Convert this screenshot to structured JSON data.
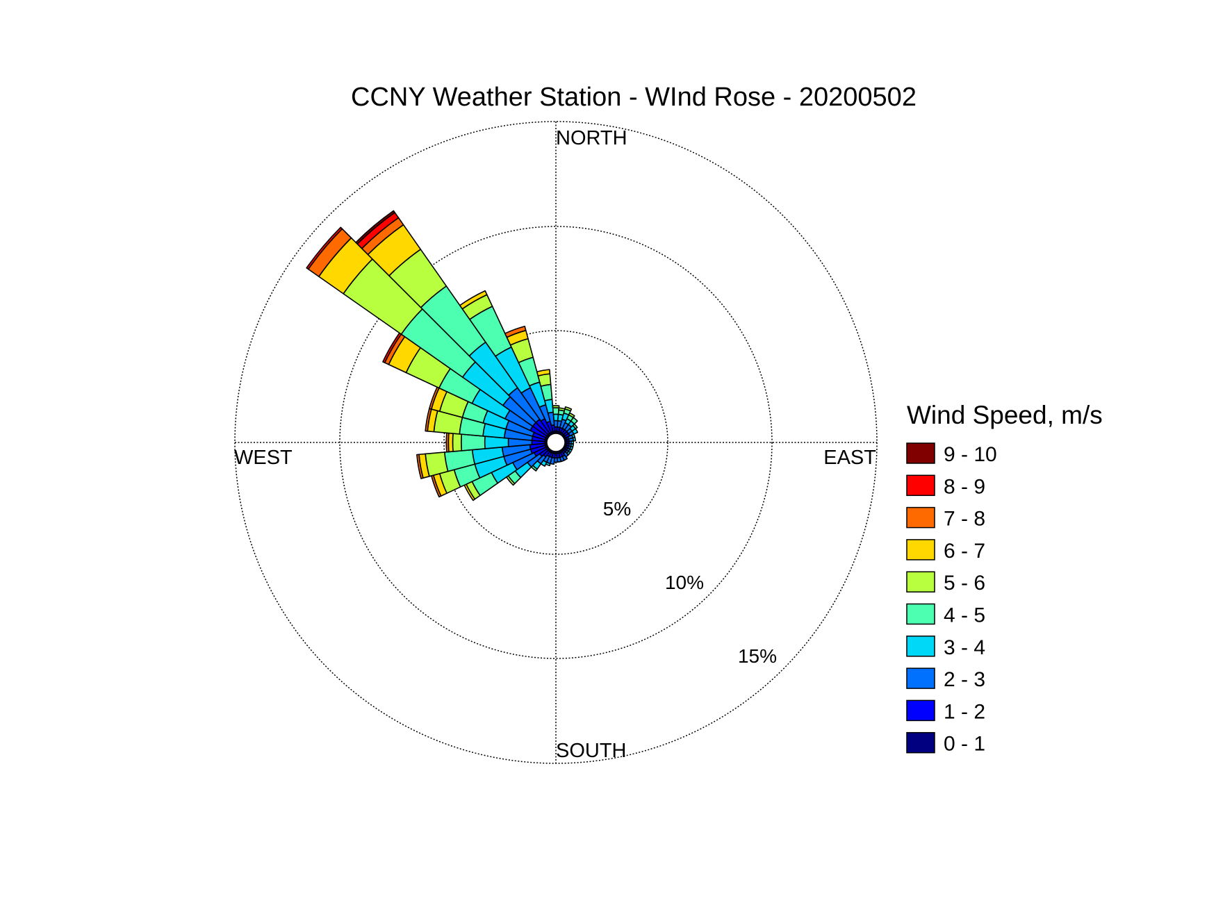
{
  "chart_data": {
    "type": "wind-rose",
    "title": "CCNY Weather Station - WInd Rose - 20200502",
    "direction_labels": {
      "north": "NORTH",
      "south": "SOUTH",
      "east": "EAST",
      "west": "WEST"
    },
    "radial_ticks": [
      {
        "value": 5,
        "label": "5%"
      },
      {
        "value": 10,
        "label": "10%"
      },
      {
        "value": 15,
        "label": "15%"
      }
    ],
    "rmax": 15,
    "direction_bins": [
      180,
      190,
      200,
      210,
      220,
      230,
      240,
      250,
      260,
      270,
      280,
      290,
      300,
      310,
      320,
      330,
      340,
      350,
      0,
      10,
      20,
      30,
      40,
      50,
      60,
      70,
      80,
      90,
      100,
      110,
      120,
      130,
      140,
      150,
      160,
      170
    ],
    "bin_width_deg": 10,
    "legend": {
      "title": "Wind Speed, m/s",
      "bins": [
        {
          "label": "9 - 10",
          "color": "#800000"
        },
        {
          "label": "8 - 9",
          "color": "#ff0000"
        },
        {
          "label": "7 - 8",
          "color": "#ff6a00"
        },
        {
          "label": "6 - 7",
          "color": "#ffd800"
        },
        {
          "label": "5 - 6",
          "color": "#b8ff40"
        },
        {
          "label": "4 - 5",
          "color": "#4dffb0"
        },
        {
          "label": "3 - 4",
          "color": "#00d8f8"
        },
        {
          "label": "2 - 3",
          "color": "#0070ff"
        },
        {
          "label": "1 - 2",
          "color": "#0000ff"
        },
        {
          "label": "0 - 1",
          "color": "#000080"
        }
      ]
    },
    "speed_colors": [
      "#000080",
      "#0000ff",
      "#0070ff",
      "#00d8f8",
      "#4dffb0",
      "#b8ff40",
      "#ffd800",
      "#ff6a00",
      "#ff0000",
      "#800000"
    ],
    "series": [
      {
        "direction": 180,
        "cumulative": [
          0.1,
          0.3,
          0.5
        ]
      },
      {
        "direction": 190,
        "cumulative": [
          0.1,
          0.3,
          0.6
        ]
      },
      {
        "direction": 200,
        "cumulative": [
          0.1,
          0.3,
          0.6,
          0.7
        ]
      },
      {
        "direction": 210,
        "cumulative": [
          0.1,
          0.3,
          0.6,
          0.8
        ]
      },
      {
        "direction": 220,
        "cumulative": [
          0.1,
          0.4,
          0.8,
          1.1,
          1.2
        ]
      },
      {
        "direction": 230,
        "cumulative": [
          0.1,
          0.5,
          1.2,
          1.9,
          2.3,
          2.4
        ]
      },
      {
        "direction": 240,
        "cumulative": [
          0.1,
          0.7,
          1.8,
          2.9,
          3.9,
          4.2,
          4.3
        ]
      },
      {
        "direction": 250,
        "cumulative": [
          0.1,
          0.8,
          2.1,
          3.5,
          4.5,
          5.2,
          5.5,
          5.6
        ]
      },
      {
        "direction": 260,
        "cumulative": [
          0.1,
          0.8,
          2.1,
          3.5,
          4.8,
          5.7,
          6.0,
          6.1
        ]
      },
      {
        "direction": 270,
        "cumulative": [
          0.1,
          0.7,
          1.8,
          2.9,
          4.0,
          4.4,
          4.6,
          4.7
        ]
      },
      {
        "direction": 280,
        "cumulative": [
          0.1,
          0.7,
          2.0,
          3.0,
          4.1,
          5.3,
          5.6,
          5.7
        ]
      },
      {
        "direction": 290,
        "cumulative": [
          0.1,
          0.7,
          2.0,
          3.1,
          4.1,
          5.2,
          5.6,
          5.7
        ]
      },
      {
        "direction": 300,
        "cumulative": [
          0.1,
          0.9,
          2.2,
          3.9,
          5.6,
          7.3,
          8.2,
          8.4,
          8.5
        ]
      },
      {
        "direction": 310,
        "cumulative": [
          0.1,
          0.9,
          2.6,
          4.9,
          8.4,
          11.7,
          13.1,
          13.7,
          13.8
        ]
      },
      {
        "direction": 320,
        "cumulative": [
          0.1,
          0.9,
          2.7,
          5.3,
          8.5,
          10.6,
          12.0,
          12.4,
          12.7,
          12.8
        ]
      },
      {
        "direction": 330,
        "cumulative": [
          0.1,
          0.8,
          2.4,
          4.5,
          6.6,
          7.2,
          7.4
        ]
      },
      {
        "direction": 340,
        "cumulative": [
          0.1,
          0.6,
          1.4,
          2.5,
          3.7,
          4.6,
          5.0,
          5.2
        ]
      },
      {
        "direction": 350,
        "cumulative": [
          0.1,
          0.4,
          1.0,
          1.6,
          2.3,
          2.8,
          3.0
        ]
      },
      {
        "direction": 0,
        "cumulative": [
          0.1,
          0.3,
          0.6,
          0.9,
          1.2,
          1.3
        ]
      },
      {
        "direction": 10,
        "cumulative": [
          0.1,
          0.3,
          0.6,
          0.9,
          1.1,
          1.2
        ]
      },
      {
        "direction": 20,
        "cumulative": [
          0.1,
          0.3,
          0.7,
          1.0,
          1.2,
          1.3
        ]
      },
      {
        "direction": 30,
        "cumulative": [
          0.1,
          0.3,
          0.6,
          0.8,
          1.0,
          1.1
        ]
      },
      {
        "direction": 40,
        "cumulative": [
          0.1,
          0.3,
          0.6,
          0.8,
          1.0
        ]
      },
      {
        "direction": 50,
        "cumulative": [
          0.1,
          0.3,
          0.5,
          0.7,
          0.8
        ]
      },
      {
        "direction": 60,
        "cumulative": [
          0.1,
          0.3,
          0.5,
          0.7
        ]
      },
      {
        "direction": 70,
        "cumulative": [
          0.1,
          0.2,
          0.4,
          0.5
        ]
      },
      {
        "direction": 80,
        "cumulative": [
          0.1,
          0.2,
          0.4,
          0.5
        ]
      },
      {
        "direction": 90,
        "cumulative": [
          0.1,
          0.2,
          0.3,
          0.4
        ]
      },
      {
        "direction": 100,
        "cumulative": [
          0.1,
          0.2,
          0.3,
          0.4
        ]
      },
      {
        "direction": 110,
        "cumulative": [
          0.1,
          0.2,
          0.3,
          0.4
        ]
      },
      {
        "direction": 120,
        "cumulative": [
          0.1,
          0.2,
          0.3,
          0.4
        ]
      },
      {
        "direction": 130,
        "cumulative": [
          0.1,
          0.2,
          0.3,
          0.4
        ]
      },
      {
        "direction": 140,
        "cumulative": [
          0.1,
          0.2,
          0.4
        ]
      },
      {
        "direction": 150,
        "cumulative": [
          0.1,
          0.3,
          0.5
        ]
      },
      {
        "direction": 160,
        "cumulative": [
          0.1,
          0.3,
          0.5
        ]
      },
      {
        "direction": 170,
        "cumulative": [
          0.1,
          0.3,
          0.5
        ]
      }
    ]
  }
}
